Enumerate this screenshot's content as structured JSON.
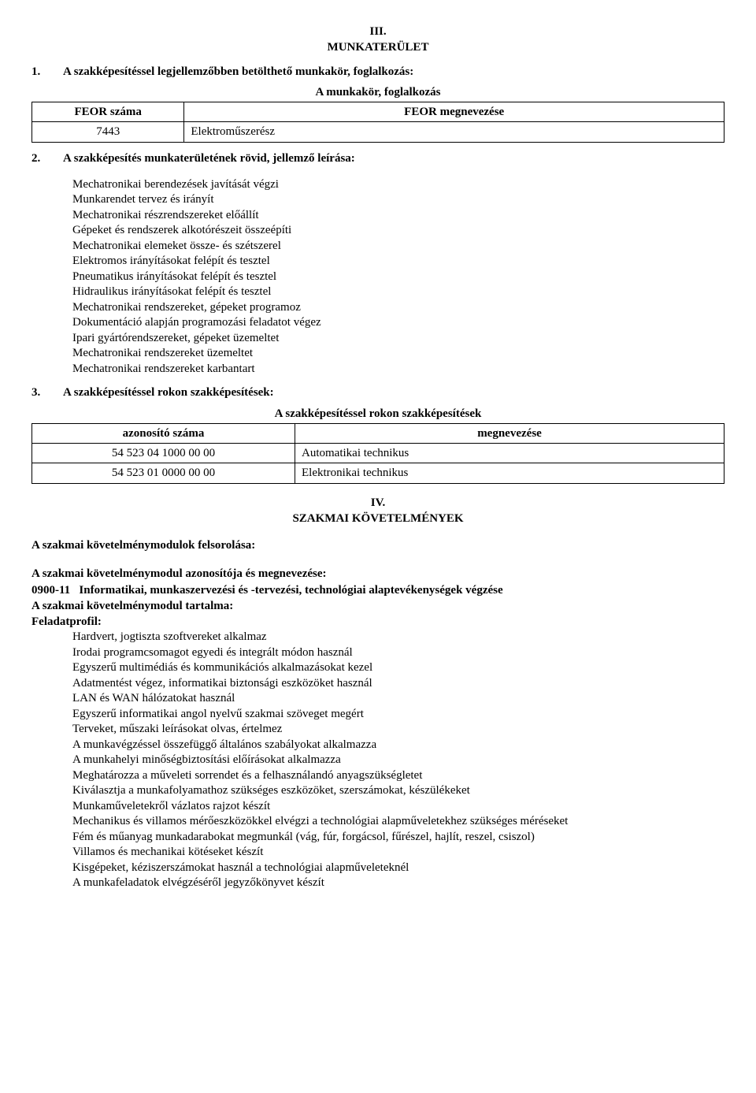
{
  "section3": {
    "roman": "III.",
    "title": "MUNKATERÜLET",
    "item1": {
      "num": "1.",
      "title": "A szakképesítéssel legjellemzőbben betölthető munkakör, foglalkozás:",
      "table": {
        "header": "A munkakör, foglalkozás",
        "col1_header": "FEOR száma",
        "col2_header": "FEOR megnevezése",
        "row1_col1": "7443",
        "row1_col2": "Elektroműszerész"
      }
    },
    "item2": {
      "num": "2.",
      "title": "A szakképesítés munkaterületének rövid, jellemző leírása:",
      "lines": [
        "Mechatronikai berendezések javítását végzi",
        "Munkarendet tervez és irányít",
        "Mechatronikai részrendszereket előállít",
        "Gépeket és rendszerek alkotórészeit összeépíti",
        "Mechatronikai elemeket össze- és szétszerel",
        "Elektromos irányításokat felépít és tesztel",
        "Pneumatikus irányításokat felépít és tesztel",
        "Hidraulikus irányításokat felépít és tesztel",
        "Mechatronikai rendszereket, gépeket programoz",
        "Dokumentáció alapján programozási feladatot végez",
        "Ipari gyártórendszereket, gépeket üzemeltet",
        "Mechatronikai rendszereket üzemeltet",
        "Mechatronikai rendszereket karbantart"
      ]
    },
    "item3": {
      "num": "3.",
      "title": "A szakképesítéssel rokon szakképesítések:",
      "table": {
        "header": "A szakképesítéssel rokon szakképesítések",
        "col1_header": "azonosító száma",
        "col2_header": "megnevezése",
        "rows": [
          {
            "c1": "54 523 04 1000 00 00",
            "c2": "Automatikai technikus"
          },
          {
            "c1": "54 523 01 0000 00 00",
            "c2": "Elektronikai technikus"
          }
        ]
      }
    }
  },
  "section4": {
    "roman": "IV.",
    "title": "SZAKMAI KÖVETELMÉNYEK",
    "heading1": "A szakmai követelménymodulok felsorolása:",
    "heading2": "A szakmai követelménymodul azonosítója és megnevezése:",
    "module": "0900-11   Informatikai, munkaszervezési és -tervezési, technológiai alaptevékenységek végzése",
    "heading3": "A szakmai követelménymodul tartalma:",
    "heading4": "Feladatprofil:",
    "lines": [
      "Hardvert, jogtiszta szoftvereket alkalmaz",
      "Irodai programcsomagot egyedi és integrált módon használ",
      "Egyszerű multimédiás és kommunikációs alkalmazásokat kezel",
      "Adatmentést végez, informatikai biztonsági eszközöket használ",
      "LAN és WAN hálózatokat használ",
      "Egyszerű informatikai angol nyelvű szakmai szöveget megért",
      "Terveket, műszaki leírásokat olvas, értelmez",
      "A munkavégzéssel összefüggő általános szabályokat alkalmazza",
      "A munkahelyi minőségbiztosítási előírásokat alkalmazza",
      "Meghatározza a műveleti sorrendet és a felhasználandó anyagszükségletet",
      "Kiválasztja a munkafolyamathoz szükséges eszközöket, szerszámokat, készülékeket",
      "Munkaműveletekről vázlatos rajzot készít",
      "Mechanikus és villamos mérőeszközökkel elvégzi a technológiai alapműveletekhez szükséges méréseket",
      "Fém és műanyag munkadarabokat megmunkál (vág, fúr, forgácsol, fűrészel, hajlít, reszel, csiszol)",
      "Villamos és mechanikai kötéseket készít",
      "Kisgépeket, kéziszerszámokat használ a technológiai alapműveleteknél",
      "A munkafeladatok elvégzéséről jegyzőkönyvet készít"
    ]
  }
}
